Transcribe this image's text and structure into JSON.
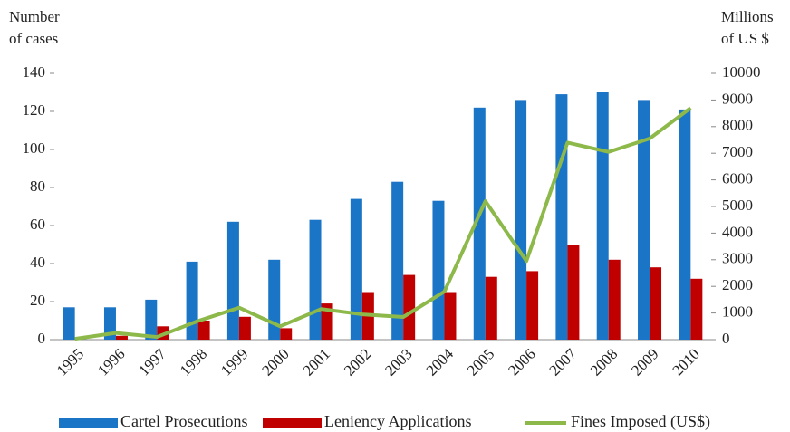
{
  "chart_data": {
    "type": "bar_line",
    "y_label": [
      "Number",
      "of cases"
    ],
    "y2_label": [
      "Millions",
      "of US $"
    ],
    "categories": [
      "1995",
      "1996",
      "1997",
      "1998",
      "1999",
      "2000",
      "2001",
      "2002",
      "2003",
      "2004",
      "2005",
      "2006",
      "2007",
      "2008",
      "2009",
      "2010"
    ],
    "series": [
      {
        "name": "Cartel Prosecutions",
        "type": "bar",
        "color": "#1b75c6",
        "values": [
          17,
          17,
          21,
          41,
          62,
          42,
          63,
          74,
          83,
          73,
          122,
          126,
          129,
          130,
          126,
          121
        ]
      },
      {
        "name": "Leniency Applications",
        "type": "bar",
        "color": "#c00000",
        "values": [
          0,
          2,
          7,
          10,
          12,
          6,
          19,
          25,
          34,
          25,
          33,
          36,
          50,
          42,
          38,
          32
        ]
      },
      {
        "name": "Fines Imposed (US$)",
        "type": "line",
        "axis": "y2",
        "color": "#8db84a",
        "values": [
          30,
          250,
          100,
          700,
          1200,
          500,
          1150,
          950,
          850,
          1800,
          5200,
          2950,
          7400,
          7050,
          7550,
          8700
        ]
      }
    ],
    "ylim": [
      0,
      140
    ],
    "yticks": [
      0,
      20,
      40,
      60,
      80,
      100,
      120,
      140
    ],
    "y2lim": [
      0,
      10000
    ],
    "y2ticks": [
      0,
      1000,
      2000,
      3000,
      4000,
      5000,
      6000,
      7000,
      8000,
      9000,
      10000
    ],
    "legend": "bottom"
  }
}
